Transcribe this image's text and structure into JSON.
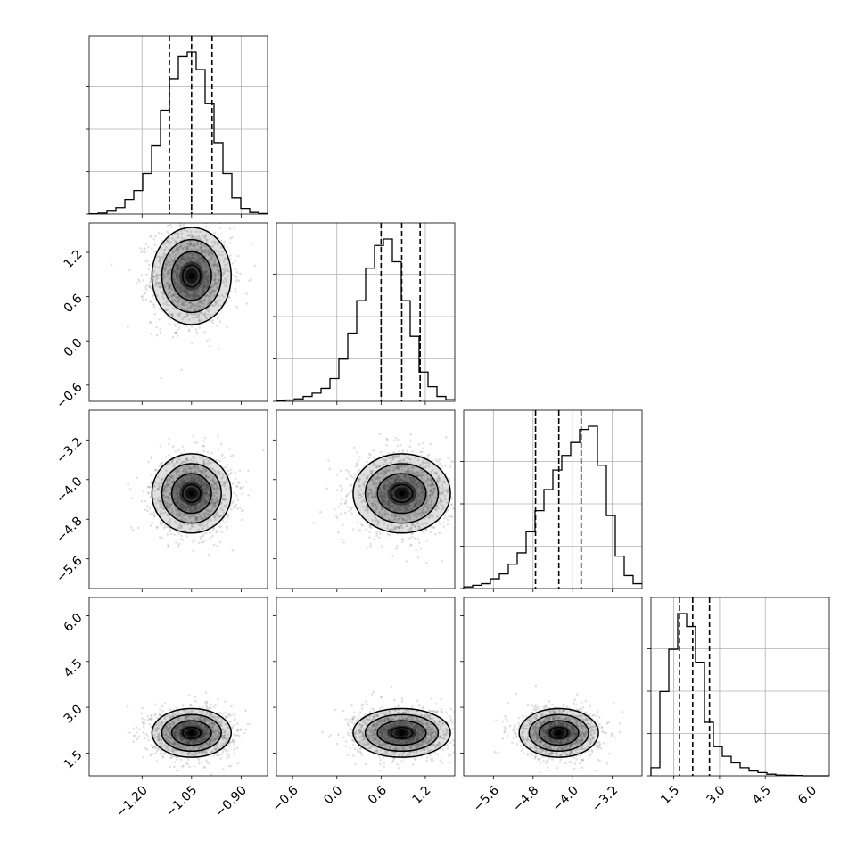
{
  "chart_data": {
    "type": "corner",
    "parameters": [
      {
        "range": [
          -1.36,
          -0.82
        ],
        "ticks": [
          -1.2,
          -1.05,
          -0.9
        ],
        "tick_labels": [
          "−1.20",
          "−1.05",
          "−0.90"
        ],
        "quantiles": [
          -1.117,
          -1.05,
          -0.988
        ],
        "hist_bins": [
          0.002,
          0.006,
          0.018,
          0.04,
          0.09,
          0.145,
          0.25,
          0.42,
          0.64,
          0.83,
          0.97,
          1.0,
          0.89,
          0.68,
          0.44,
          0.25,
          0.1,
          0.035,
          0.01,
          0.003
        ]
      },
      {
        "range": [
          -0.82,
          1.6
        ],
        "ticks": [
          -0.6,
          0.0,
          0.6,
          1.2
        ],
        "tick_labels": [
          "−0.6",
          "0.0",
          "0.6",
          "1.2"
        ],
        "quantiles": [
          0.6,
          0.88,
          1.13
        ],
        "hist_bins": [
          0.003,
          0.008,
          0.015,
          0.03,
          0.05,
          0.08,
          0.14,
          0.26,
          0.42,
          0.62,
          0.82,
          0.96,
          1.0,
          0.86,
          0.62,
          0.4,
          0.18,
          0.09,
          0.03,
          0.01
        ]
      },
      {
        "range": [
          -6.2,
          -2.6
        ],
        "ticks": [
          -5.6,
          -4.8,
          -4.0,
          -3.2
        ],
        "tick_labels": [
          "−5.6",
          "−4.8",
          "−4.0",
          "−3.2"
        ],
        "quantiles": [
          -4.75,
          -4.28,
          -3.83
        ],
        "hist_bins": [
          0.01,
          0.02,
          0.03,
          0.06,
          0.09,
          0.15,
          0.22,
          0.35,
          0.48,
          0.61,
          0.73,
          0.82,
          0.9,
          0.98,
          1.0,
          0.76,
          0.45,
          0.2,
          0.08,
          0.03
        ]
      },
      {
        "range": [
          0.75,
          6.6
        ],
        "ticks": [
          1.5,
          3.0,
          4.5,
          6.0
        ],
        "tick_labels": [
          "1.5",
          "3.0",
          "4.5",
          "6.0"
        ],
        "quantiles": [
          1.69,
          2.12,
          2.67
        ],
        "hist_bins": [
          0.05,
          0.52,
          0.78,
          1.0,
          0.92,
          0.7,
          0.33,
          0.18,
          0.12,
          0.08,
          0.05,
          0.03,
          0.02,
          0.01,
          0.005,
          0.003,
          0.002,
          0.0,
          0.0,
          0.0
        ]
      }
    ],
    "means": [
      -1.05,
      0.88,
      -4.28,
      2.16
    ],
    "stds": [
      0.06,
      0.33,
      0.4,
      0.4
    ],
    "grid": true,
    "line_color": "#000000",
    "density_color": "#000000",
    "scatter_color": "#888888"
  }
}
